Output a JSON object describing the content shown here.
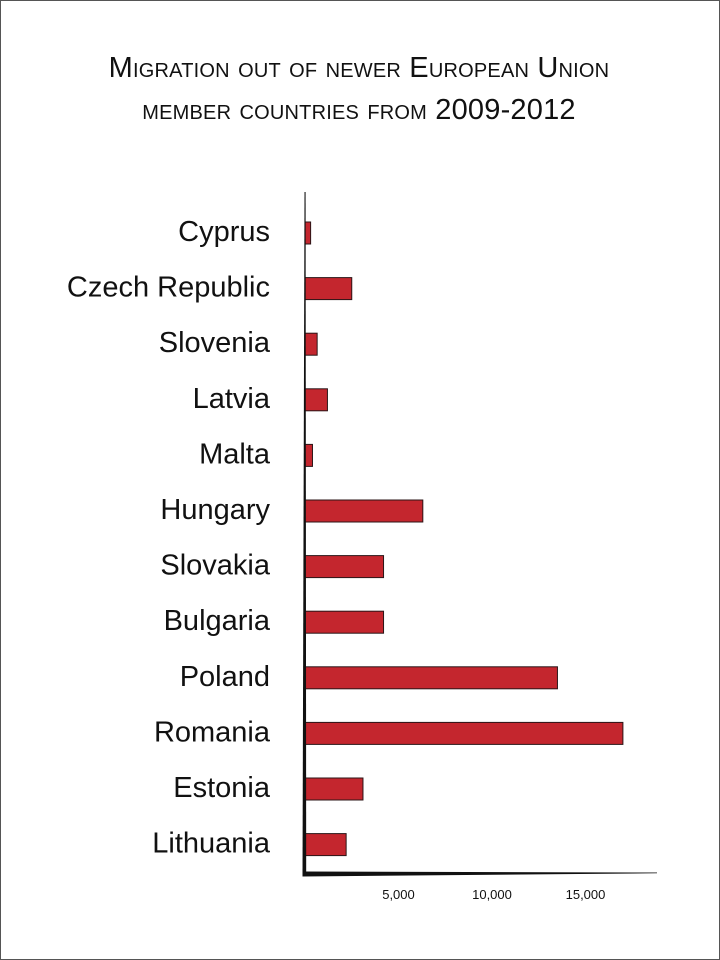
{
  "title": {
    "line1": "Migration out of newer European Union",
    "line2_prefix": "member countries from",
    "line2_years": "2009-2012"
  },
  "chart_data": {
    "type": "bar",
    "orientation": "horizontal",
    "categories": [
      "Cyprus",
      "Czech Republic",
      "Slovenia",
      "Latvia",
      "Malta",
      "Hungary",
      "Slovakia",
      "Bulgaria",
      "Poland",
      "Romania",
      "Estonia",
      "Lithuania"
    ],
    "values": [
      300,
      2500,
      650,
      1200,
      400,
      6300,
      4200,
      4200,
      13500,
      17000,
      3100,
      2200
    ],
    "xticks": [
      5000,
      10000,
      15000
    ],
    "xtick_labels": [
      "5,000",
      "10,000",
      "15,000"
    ],
    "xlim": [
      0,
      19500
    ],
    "grid": false,
    "colors": {
      "bar": "#c4262e",
      "bar_edge": "#2b1517",
      "axis": "#111111"
    }
  }
}
